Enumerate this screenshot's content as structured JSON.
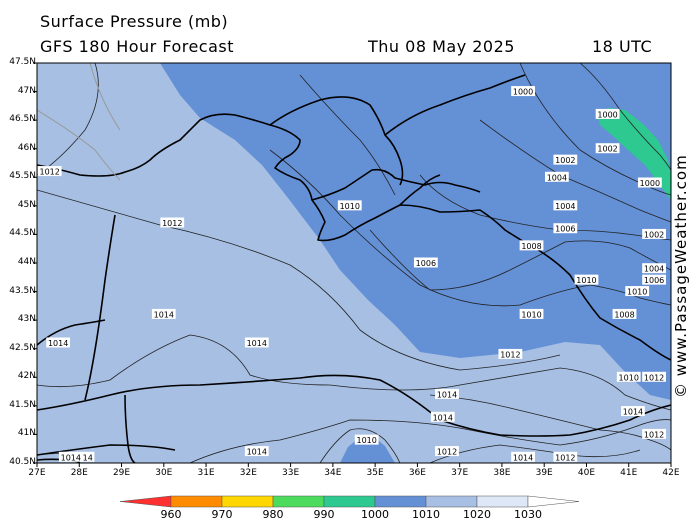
{
  "header": {
    "title": "Surface Pressure (mb)",
    "subtitle": "GFS 180 Hour Forecast",
    "date": "Thu 08 May 2025",
    "time": "18 UTC"
  },
  "axes": {
    "lat_labels": [
      "47.5N",
      "47N",
      "46.5N",
      "46N",
      "45.5N",
      "45N",
      "44.5N",
      "44N",
      "43.5N",
      "43N",
      "42.5N",
      "42N",
      "41.5N",
      "41N",
      "40.5N"
    ],
    "lon_labels": [
      "27E",
      "28E",
      "29E",
      "30E",
      "31E",
      "32E",
      "33E",
      "34E",
      "35E",
      "36E",
      "37E",
      "38E",
      "39E",
      "40E",
      "41E",
      "42E"
    ]
  },
  "isobar_labels": [
    {
      "text": "1000",
      "lon": 38.5,
      "lat": 47.0
    },
    {
      "text": "1000",
      "lon": 40.5,
      "lat": 46.6
    },
    {
      "text": "1002",
      "lon": 40.5,
      "lat": 46.0
    },
    {
      "text": "1000",
      "lon": 41.5,
      "lat": 45.4
    },
    {
      "text": "1002",
      "lon": 39.5,
      "lat": 45.8
    },
    {
      "text": "1004",
      "lon": 39.3,
      "lat": 45.5
    },
    {
      "text": "1004",
      "lon": 39.5,
      "lat": 45.0
    },
    {
      "text": "1006",
      "lon": 39.5,
      "lat": 44.6
    },
    {
      "text": "1002",
      "lon": 41.6,
      "lat": 44.5
    },
    {
      "text": "1008",
      "lon": 38.7,
      "lat": 44.3
    },
    {
      "text": "1006",
      "lon": 36.2,
      "lat": 44.0
    },
    {
      "text": "1004",
      "lon": 41.6,
      "lat": 43.9
    },
    {
      "text": "1006",
      "lon": 41.6,
      "lat": 43.7
    },
    {
      "text": "1010",
      "lon": 34.4,
      "lat": 45.0
    },
    {
      "text": "1010",
      "lon": 40.0,
      "lat": 43.7
    },
    {
      "text": "1010",
      "lon": 41.2,
      "lat": 43.5
    },
    {
      "text": "1008",
      "lon": 40.9,
      "lat": 43.1
    },
    {
      "text": "1010",
      "lon": 38.7,
      "lat": 43.1
    },
    {
      "text": "1012",
      "lon": 27.3,
      "lat": 45.6
    },
    {
      "text": "1012",
      "lon": 30.2,
      "lat": 44.7
    },
    {
      "text": "1012",
      "lon": 38.2,
      "lat": 42.4
    },
    {
      "text": "1014",
      "lon": 30.0,
      "lat": 43.1
    },
    {
      "text": "1014",
      "lon": 27.5,
      "lat": 42.6
    },
    {
      "text": "1014",
      "lon": 32.2,
      "lat": 42.6
    },
    {
      "text": "1014",
      "lon": 36.7,
      "lat": 41.7
    },
    {
      "text": "1014",
      "lon": 36.6,
      "lat": 41.3
    },
    {
      "text": "1014",
      "lon": 41.1,
      "lat": 41.4
    },
    {
      "text": "1010",
      "lon": 41.0,
      "lat": 42.0
    },
    {
      "text": "1012",
      "lon": 41.6,
      "lat": 42.0
    },
    {
      "text": "1012",
      "lon": 41.6,
      "lat": 41.0
    },
    {
      "text": "1010",
      "lon": 34.8,
      "lat": 40.9
    },
    {
      "text": "1012",
      "lon": 36.7,
      "lat": 40.7
    },
    {
      "text": "1012",
      "lon": 39.5,
      "lat": 40.6
    },
    {
      "text": "1014",
      "lon": 38.5,
      "lat": 40.6
    },
    {
      "text": "1014",
      "lon": 32.2,
      "lat": 40.7
    },
    {
      "text": "1014",
      "lon": 27.8,
      "lat": 40.6
    },
    {
      "text": "14",
      "lon": 28.2,
      "lat": 40.6
    }
  ],
  "colorscale": {
    "labels": [
      "960",
      "970",
      "980",
      "990",
      "1000",
      "1010",
      "1020",
      "1030"
    ],
    "colors": [
      "#ff3030",
      "#ff8c00",
      "#ffd700",
      "#4cdb5c",
      "#2ec990",
      "#6490d6",
      "#a6bfe3",
      "#dde7f5",
      "#ffffff"
    ]
  },
  "colors": {
    "fill_1010_1020": "#a6bfe3",
    "fill_1000_1010": "#6490d6",
    "fill_990_1000": "#2ec990"
  },
  "watermark": "© www.PassageWeather.com"
}
